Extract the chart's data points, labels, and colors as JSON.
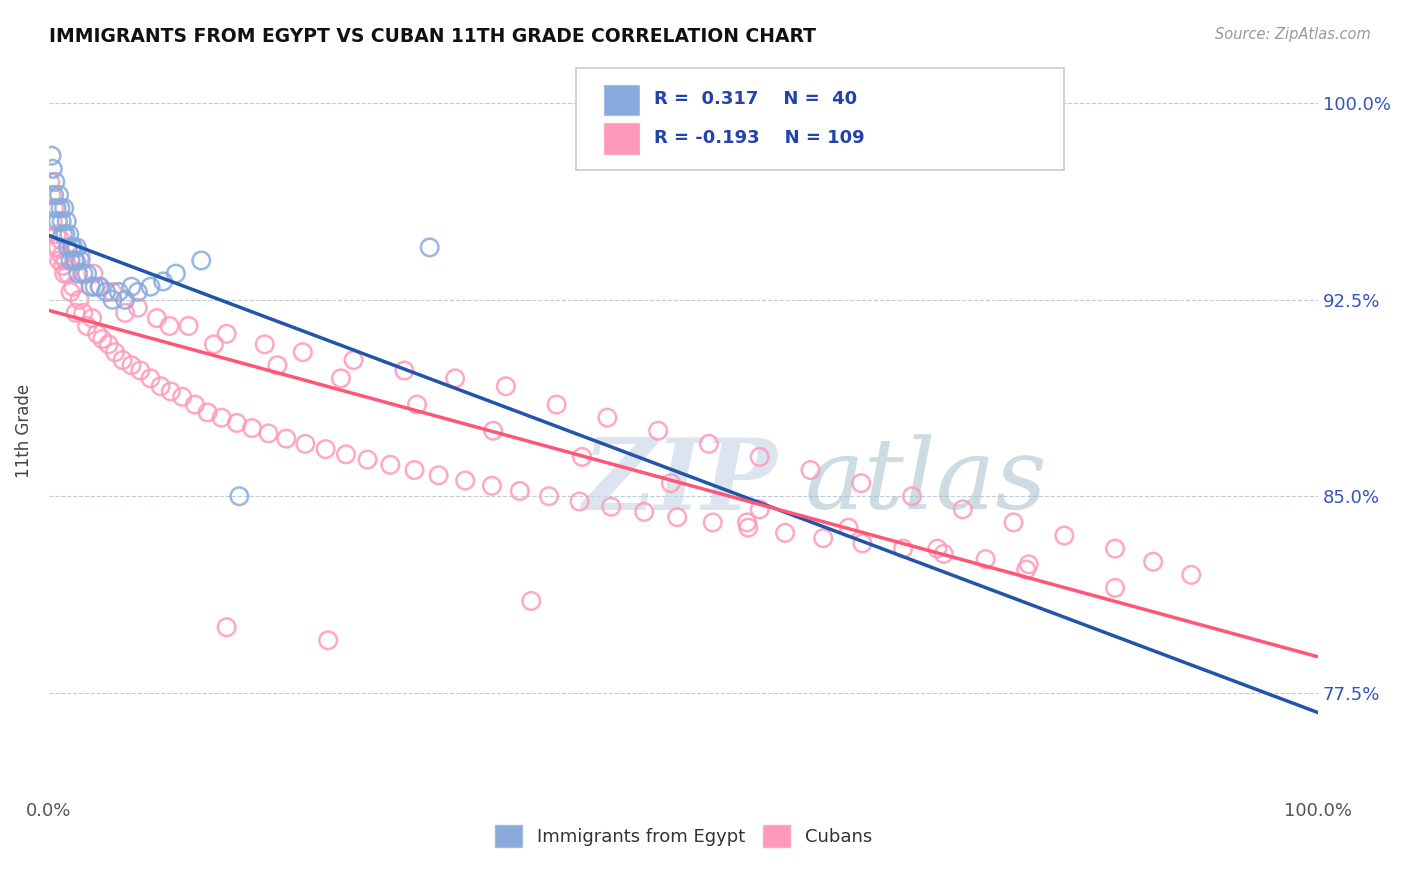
{
  "title": "IMMIGRANTS FROM EGYPT VS CUBAN 11TH GRADE CORRELATION CHART",
  "source_text": "Source: ZipAtlas.com",
  "ylabel": "11th Grade",
  "xlim": [
    0.0,
    1.0
  ],
  "ylim": [
    0.735,
    1.015
  ],
  "yticks": [
    0.775,
    0.85,
    0.925,
    1.0
  ],
  "ytick_labels": [
    "77.5%",
    "85.0%",
    "92.5%",
    "100.0%"
  ],
  "xtick_labels": [
    "0.0%",
    "100.0%"
  ],
  "xticks": [
    0.0,
    1.0
  ],
  "blue_color": "#88AADD",
  "pink_color": "#FF99BB",
  "trend_blue": "#2255AA",
  "trend_pink": "#FF5577",
  "watermark_zip": "ZIP",
  "watermark_atlas": "atlas",
  "watermark_color_zip": "#C8D8E8",
  "watermark_color_atlas": "#A8C4D8",
  "blue_scatter_x": [
    0.002,
    0.003,
    0.004,
    0.005,
    0.006,
    0.007,
    0.008,
    0.009,
    0.01,
    0.011,
    0.012,
    0.013,
    0.014,
    0.015,
    0.016,
    0.017,
    0.018,
    0.019,
    0.02,
    0.021,
    0.022,
    0.023,
    0.025,
    0.027,
    0.03,
    0.033,
    0.036,
    0.04,
    0.045,
    0.05,
    0.055,
    0.06,
    0.065,
    0.07,
    0.08,
    0.09,
    0.1,
    0.12,
    0.15,
    0.3
  ],
  "blue_scatter_y": [
    0.98,
    0.975,
    0.965,
    0.97,
    0.96,
    0.955,
    0.965,
    0.96,
    0.955,
    0.95,
    0.96,
    0.95,
    0.955,
    0.945,
    0.95,
    0.94,
    0.945,
    0.945,
    0.94,
    0.94,
    0.945,
    0.935,
    0.94,
    0.935,
    0.935,
    0.93,
    0.93,
    0.93,
    0.928,
    0.925,
    0.928,
    0.925,
    0.93,
    0.928,
    0.93,
    0.932,
    0.935,
    0.94,
    0.85,
    0.945
  ],
  "pink_scatter_x": [
    0.001,
    0.002,
    0.003,
    0.004,
    0.005,
    0.006,
    0.007,
    0.008,
    0.009,
    0.01,
    0.011,
    0.012,
    0.013,
    0.015,
    0.017,
    0.019,
    0.021,
    0.024,
    0.027,
    0.03,
    0.034,
    0.038,
    0.042,
    0.047,
    0.052,
    0.058,
    0.065,
    0.072,
    0.08,
    0.088,
    0.096,
    0.105,
    0.115,
    0.125,
    0.136,
    0.148,
    0.16,
    0.173,
    0.187,
    0.202,
    0.218,
    0.234,
    0.251,
    0.269,
    0.288,
    0.307,
    0.328,
    0.349,
    0.371,
    0.394,
    0.418,
    0.443,
    0.469,
    0.495,
    0.523,
    0.551,
    0.58,
    0.61,
    0.641,
    0.673,
    0.705,
    0.738,
    0.772,
    0.04,
    0.06,
    0.085,
    0.11,
    0.14,
    0.17,
    0.2,
    0.24,
    0.28,
    0.32,
    0.36,
    0.4,
    0.44,
    0.48,
    0.52,
    0.56,
    0.6,
    0.64,
    0.68,
    0.72,
    0.76,
    0.8,
    0.84,
    0.87,
    0.9,
    0.025,
    0.035,
    0.05,
    0.07,
    0.095,
    0.13,
    0.18,
    0.23,
    0.29,
    0.35,
    0.42,
    0.49,
    0.56,
    0.63,
    0.7,
    0.77,
    0.84,
    0.14,
    0.22,
    0.38,
    0.55
  ],
  "pink_scatter_y": [
    0.97,
    0.965,
    0.955,
    0.96,
    0.945,
    0.95,
    0.945,
    0.94,
    0.948,
    0.942,
    0.938,
    0.935,
    0.94,
    0.935,
    0.928,
    0.93,
    0.92,
    0.925,
    0.92,
    0.915,
    0.918,
    0.912,
    0.91,
    0.908,
    0.905,
    0.902,
    0.9,
    0.898,
    0.895,
    0.892,
    0.89,
    0.888,
    0.885,
    0.882,
    0.88,
    0.878,
    0.876,
    0.874,
    0.872,
    0.87,
    0.868,
    0.866,
    0.864,
    0.862,
    0.86,
    0.858,
    0.856,
    0.854,
    0.852,
    0.85,
    0.848,
    0.846,
    0.844,
    0.842,
    0.84,
    0.838,
    0.836,
    0.834,
    0.832,
    0.83,
    0.828,
    0.826,
    0.824,
    0.93,
    0.92,
    0.918,
    0.915,
    0.912,
    0.908,
    0.905,
    0.902,
    0.898,
    0.895,
    0.892,
    0.885,
    0.88,
    0.875,
    0.87,
    0.865,
    0.86,
    0.855,
    0.85,
    0.845,
    0.84,
    0.835,
    0.83,
    0.825,
    0.82,
    0.942,
    0.935,
    0.928,
    0.922,
    0.915,
    0.908,
    0.9,
    0.895,
    0.885,
    0.875,
    0.865,
    0.855,
    0.845,
    0.838,
    0.83,
    0.822,
    0.815,
    0.8,
    0.795,
    0.81,
    0.84
  ]
}
